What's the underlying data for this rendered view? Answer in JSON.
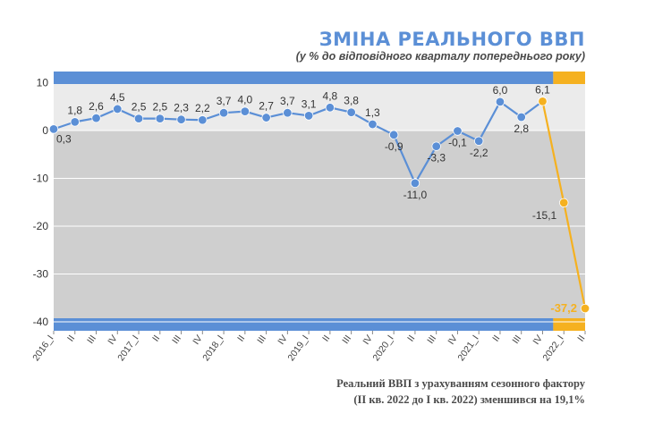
{
  "chart_data": {
    "type": "line",
    "title": "ЗМІНА РЕАЛЬНОГО ВВП",
    "subtitle": "(у % до відповідного кварталу попереднього року)",
    "x": [
      "2016_I",
      "II",
      "III",
      "IV",
      "2017_I",
      "II",
      "III",
      "IV",
      "2018_I",
      "II",
      "III",
      "IV",
      "2019_I",
      "II",
      "III",
      "IV",
      "2020_I",
      "II",
      "III",
      "IV",
      "2021_I",
      "II",
      "III",
      "IV",
      "2022_I",
      "II"
    ],
    "series": [
      {
        "values": [
          0.3,
          1.8,
          2.6,
          4.5,
          2.5,
          2.5,
          2.3,
          2.2,
          3.7,
          4.0,
          2.7,
          3.7,
          3.1,
          4.8,
          3.8,
          1.3,
          -0.9,
          -11.0,
          -3.3,
          -0.1,
          -2.2,
          6.0,
          2.8,
          6.1,
          null,
          null
        ],
        "labels": [
          "0,3",
          "1,8",
          "2,6",
          "4,5",
          "2,5",
          "2,5",
          "2,3",
          "2,2",
          "3,7",
          "4,0",
          "2,7",
          "3,7",
          "3,1",
          "4,8",
          "3,8",
          "1,3",
          "-0,9",
          "-11,0",
          "-3,3",
          "-0,1",
          "-2,2",
          "6,0",
          "2,8",
          "6,1",
          "",
          ""
        ],
        "color": "#5b8fd6"
      },
      {
        "values": [
          null,
          null,
          null,
          null,
          null,
          null,
          null,
          null,
          null,
          null,
          null,
          null,
          null,
          null,
          null,
          null,
          null,
          null,
          null,
          null,
          null,
          null,
          null,
          6.1,
          -15.1,
          -37.2
        ],
        "labels": [
          "",
          "",
          "",
          "",
          "",
          "",
          "",
          "",
          "",
          "",
          "",
          "",
          "",
          "",
          "",
          "",
          "",
          "",
          "",
          "",
          "",
          "",
          "",
          "",
          "-15,1",
          "-37,2"
        ],
        "color": "#f5b120"
      }
    ],
    "y_ticks": [
      "10",
      "0",
      "-10",
      "-20",
      "-30",
      "-40"
    ],
    "ylim": [
      -42,
      10
    ],
    "grid": true,
    "note_lines": [
      "Реальний ВВП з урахуванням сезонного фактору",
      "(ІІ кв. 2022 до І кв. 2022) зменшився на 19,1%"
    ]
  }
}
